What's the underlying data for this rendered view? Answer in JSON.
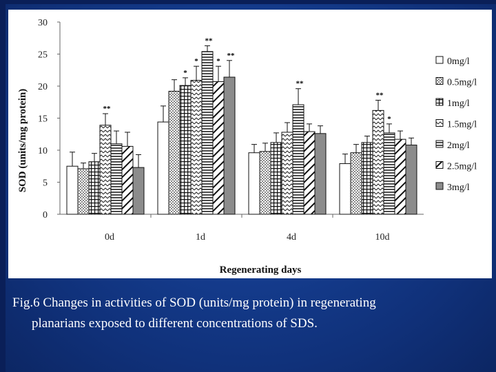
{
  "caption": {
    "label": "Fig.6",
    "text": " Changes in activities of SOD (units/mg protein) in regenerating",
    "text2": "planarians exposed to different concentrations of SDS."
  },
  "chart_data": {
    "type": "bar",
    "title": "",
    "xlabel": "Regenerating days",
    "ylabel": "SOD (units/mg protein)",
    "ylim": [
      0,
      30
    ],
    "yticks": [
      "0",
      "5",
      "10",
      "15",
      "20",
      "25",
      "30"
    ],
    "categories": [
      "0d",
      "1d",
      "4d",
      "10d"
    ],
    "series": [
      {
        "name": "0mg/l",
        "pattern": "white",
        "values": [
          7.5,
          14.4,
          9.6,
          7.9
        ],
        "errors": [
          2.2,
          2.5,
          1.3,
          1.5
        ],
        "sig": [
          "",
          "",
          "",
          ""
        ]
      },
      {
        "name": "0.5mg/l",
        "pattern": "dots",
        "values": [
          7.1,
          19.2,
          9.8,
          9.6
        ],
        "errors": [
          0.9,
          1.8,
          1.3,
          1.3
        ],
        "sig": [
          "",
          "",
          "",
          ""
        ]
      },
      {
        "name": "1mg/l",
        "pattern": "grid",
        "values": [
          8.2,
          20.1,
          11.2,
          11.2
        ],
        "errors": [
          1.3,
          1.2,
          1.5,
          1.0
        ],
        "sig": [
          "",
          "*",
          "",
          ""
        ]
      },
      {
        "name": "1.5mg/l",
        "pattern": "zigzag",
        "values": [
          13.9,
          20.9,
          12.8,
          16.2
        ],
        "errors": [
          1.8,
          2.2,
          1.5,
          1.6
        ],
        "sig": [
          "**",
          "*",
          "",
          "**"
        ]
      },
      {
        "name": "2mg/l",
        "pattern": "hlines",
        "values": [
          11.0,
          25.4,
          17.1,
          12.7
        ],
        "errors": [
          2.0,
          0.9,
          2.5,
          1.4
        ],
        "sig": [
          "",
          "**",
          "**",
          "*"
        ]
      },
      {
        "name": "2.5mg/l",
        "pattern": "diag",
        "values": [
          10.6,
          20.7,
          12.9,
          11.7
        ],
        "errors": [
          2.2,
          2.4,
          1.2,
          1.3
        ],
        "sig": [
          "",
          "*",
          "",
          ""
        ]
      },
      {
        "name": "3mg/l",
        "pattern": "gray",
        "values": [
          7.3,
          21.4,
          12.6,
          10.8
        ],
        "errors": [
          2.0,
          2.6,
          1.2,
          1.1
        ],
        "sig": [
          "",
          "**",
          "",
          ""
        ]
      }
    ],
    "legend_position": "right"
  }
}
